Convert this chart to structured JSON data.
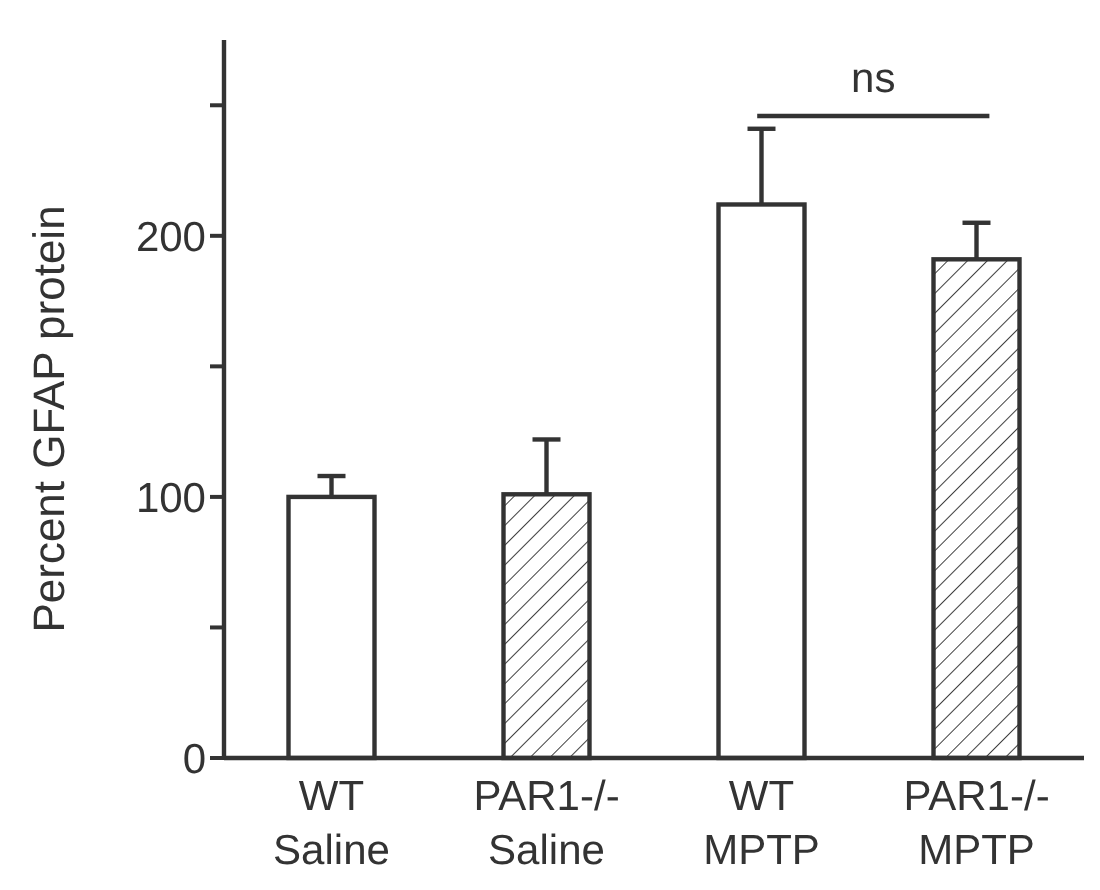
{
  "chart_data": {
    "type": "bar",
    "ylabel": "Percent GFAP protein",
    "categories": [
      "WT\nSaline",
      "PAR1-/-\nSaline",
      "WT\nMPTP",
      "PAR1-/-\nMPTP"
    ],
    "values": [
      100,
      101,
      212,
      191
    ],
    "errors": [
      8,
      21,
      29,
      14
    ],
    "colors": [
      "#ffffff",
      "#404040",
      "#ffffff",
      "#404040"
    ],
    "ylim": [
      0,
      275
    ],
    "yticks": [
      0,
      {
        "value": 50,
        "label": null
      },
      100,
      {
        "value": 150,
        "label": null
      },
      200,
      {
        "value": 250,
        "label": null
      }
    ],
    "annotations": [
      "ns"
    ]
  }
}
